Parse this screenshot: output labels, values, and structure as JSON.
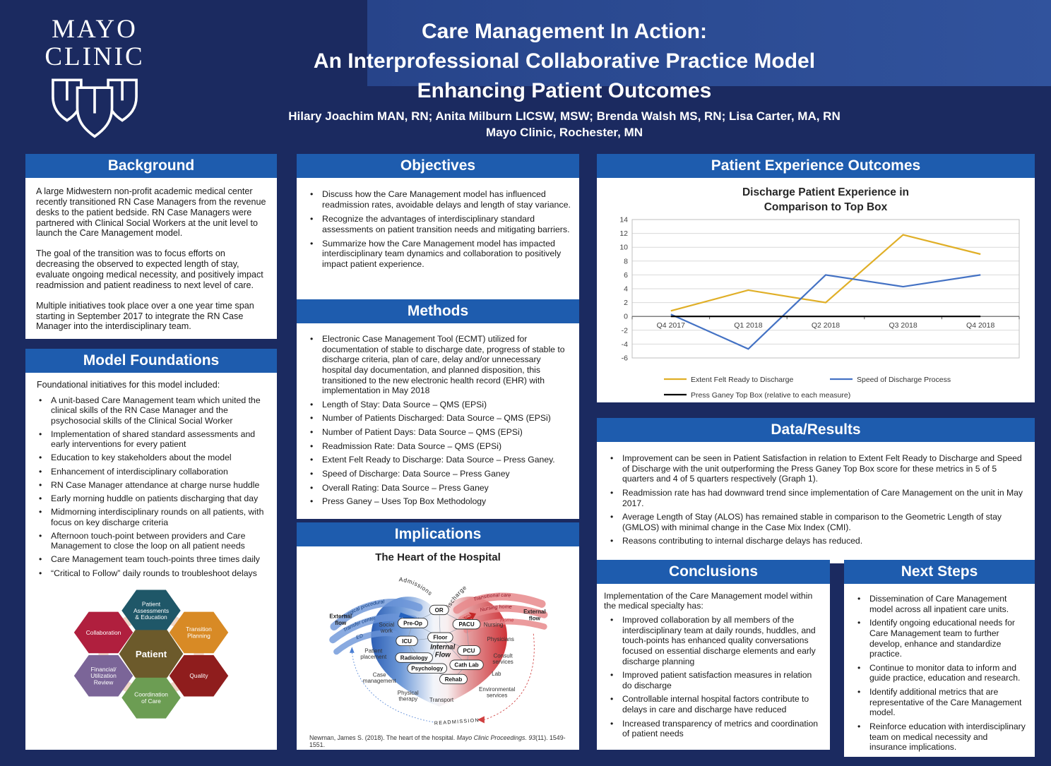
{
  "poster": {
    "logo_line1": "MAYO",
    "logo_line2": "CLINIC",
    "title_line1": "Care Management In Action:",
    "title_line2": "An Interprofessional Collaborative Practice Model",
    "title_line3": "Enhancing Patient Outcomes",
    "authors": "Hilary Joachim MAN, RN; Anita Milburn LICSW, MSW; Brenda Walsh MS, RN; Lisa Carter, MA, RN",
    "affiliation": "Mayo Clinic, Rochester, MN"
  },
  "colors": {
    "poster_navy": "#1b2a60",
    "header_accent_blue": "#2c4d94",
    "section_header_blue": "#1e5cae",
    "body_text": "#1a1a1a"
  },
  "background": {
    "title": "Background",
    "paragraphs": [
      "A large Midwestern non-profit academic medical center recently transitioned RN Case Managers from the revenue desks to the patient bedside. RN Case Managers were partnered with Clinical Social Workers at the unit level to launch the Care Management model.",
      "The goal of the transition was to focus efforts on decreasing the observed to expected length of stay, evaluate ongoing medical necessity, and positively impact readmission and patient readiness to next level of care.",
      "Multiple initiatives took place over a one year time span starting in September 2017 to integrate the RN Case Manager into the interdisciplinary team."
    ]
  },
  "model_foundations": {
    "title": "Model Foundations",
    "intro": "Foundational initiatives for this model included:",
    "bullets": [
      "A unit-based Care Management team which united the clinical skills of the RN Case Manager and the psychosocial skills of the Clinical Social Worker",
      "Implementation of shared standard assessments and early interventions for every patient",
      "Education to key stakeholders about the model",
      "Enhancement of interdisciplinary collaboration",
      "RN Case Manager attendance at charge nurse huddle",
      "Early morning huddle on patients discharging that day",
      "Midmorning interdisciplinary rounds on all patients, with focus on key discharge criteria",
      "Afternoon touch-point between providers and Care Management to close the loop on all patient needs",
      "Care Management team touch-points three  times daily",
      "“Critical to Follow” daily rounds  to troubleshoot delays"
    ],
    "hex_model": {
      "center": {
        "label": "Patient",
        "lines": [
          "Patient"
        ],
        "color": "#6c5a2b"
      },
      "ring": [
        {
          "label": "Patient Assessments & Education",
          "lines": [
            "Patient",
            "Assessments",
            "& Education"
          ],
          "color": "#1f5768"
        },
        {
          "label": "Transition Planning",
          "lines": [
            "Transition",
            "Planning"
          ],
          "color": "#d88a25"
        },
        {
          "label": "Quality",
          "lines": [
            "Quality"
          ],
          "color": "#8f1d1d"
        },
        {
          "label": "Coordination of Care",
          "lines": [
            "Coordination",
            "of Care"
          ],
          "color": "#6c9d53"
        },
        {
          "label": "Financial/ Utilization Review",
          "lines": [
            "Financial/",
            "Utilization",
            "Review"
          ],
          "color": "#7b6598"
        },
        {
          "label": "Collaboration",
          "lines": [
            "Collaboration"
          ],
          "color": "#b01f3e"
        }
      ]
    }
  },
  "objectives": {
    "title": "Objectives",
    "bullets": [
      "Discuss how the Care Management model has influenced readmission rates, avoidable delays and length of stay variance.",
      "Recognize the advantages of interdisciplinary standard assessments on patient transition needs and mitigating barriers.",
      "Summarize how the Care Management model has impacted interdisciplinary team dynamics and collaboration to positively impact patient experience."
    ]
  },
  "methods": {
    "title": "Methods",
    "bullets": [
      "Electronic Case Management Tool (ECMT) utilized for documentation of stable to discharge date, progress of stable to discharge criteria, plan of care, delay and/or unnecessary hospital day documentation, and planned disposition, this transitioned to the new electronic health record (EHR) with implementation in May 2018",
      "Length of Stay: Data Source – QMS (EPSi)",
      "Number of Patients Discharged: Data Source – QMS (EPSi)",
      "Number of Patient Days: Data Source – QMS (EPSi)",
      "Readmission Rate: Data Source – QMS (EPSi)",
      "Extent Felt Ready to Discharge: Data Source – Press Ganey.",
      "Speed of Discharge: Data Source – Press Ganey",
      "Overall Rating: Data Source – Press Ganey",
      "Press Ganey – Uses Top Box Methodology"
    ]
  },
  "implications": {
    "title": "Implications",
    "diagram_title": "The Heart of the Hospital",
    "inflow_bands": [
      "Surgical procedural",
      "Transfer center",
      "ED"
    ],
    "inflow_arc_label": "Admissions",
    "inflow_arrow_label": "PRELOAD",
    "outflow_bands": [
      "Transitional care",
      "Nursing home",
      "Home"
    ],
    "outflow_arc_label": "Discharge",
    "outflow_arrow_label": "AFTERLOAD",
    "external_flow_left": [
      "External",
      "flow"
    ],
    "external_flow_right": [
      "External",
      "flow"
    ],
    "nodes": [
      "OR",
      "Pre-Op",
      "PACU",
      "Floor",
      "ICU",
      "PCU",
      "Radiology",
      "Cath Lab",
      "Psychology",
      "Rehab"
    ],
    "center_label_lines": [
      "Internal",
      "Flow"
    ],
    "left_labels": [
      [
        "Social",
        "work"
      ],
      [
        "Patient",
        "placement"
      ],
      [
        "Case",
        "management"
      ],
      [
        "Physical",
        "therapy"
      ],
      [
        "Transport"
      ]
    ],
    "right_labels": [
      [
        "Nursing"
      ],
      [
        "Physicians"
      ],
      [
        "Consult",
        "services"
      ],
      [
        "Lab"
      ],
      [
        "Environmental",
        "services"
      ]
    ],
    "readmission_label": "READMISSION",
    "citation": {
      "prefix": "Newman, James S. (2018). The heart of the hospital. ",
      "italic": "Mayo Clinic Proceedings.",
      "italic2": "  93",
      "suffix": "(11). 1549-1551."
    }
  },
  "patient_experience": {
    "title": "Patient Experience Outcomes"
  },
  "chart_data": {
    "type": "line",
    "title": "Discharge Patient Experience in Comparison to Top Box",
    "title_lines": [
      "Discharge Patient Experience in",
      "Comparison to Top Box"
    ],
    "categories": [
      "Q4 2017",
      "Q1 2018",
      "Q2 2018",
      "Q3 2018",
      "Q4 2018"
    ],
    "series": [
      {
        "name": "Extent Felt Ready to Discharge",
        "color": "#e0af27",
        "values": [
          0.8,
          3.8,
          2,
          11.8,
          9
        ]
      },
      {
        "name": "Speed of Discharge Process",
        "color": "#4472c4",
        "values": [
          0.3,
          -4.7,
          6,
          4.3,
          6
        ]
      },
      {
        "name": "Press Ganey Top Box (relative to each measure)",
        "color": "#000000",
        "values": [
          0,
          0,
          0,
          0,
          0
        ]
      }
    ],
    "ylim": [
      -6,
      14
    ],
    "ytick_step": 2,
    "grid": true,
    "legend_position": "bottom"
  },
  "data_results": {
    "title": "Data/Results",
    "bullets": [
      "Improvement can be seen in Patient Satisfaction in relation to Extent Felt Ready to Discharge and Speed of Discharge with the unit outperforming the Press Ganey Top Box score for these metrics in 5 of 5 quarters and 4 of 5 quarters respectively (Graph 1).",
      "Readmission rate has had downward trend since implementation of Care Management on the unit in May 2017.",
      "Average Length of Stay (ALOS) has remained stable in comparison to the Geometric Length of stay (GMLOS) with minimal change in the Case Mix Index (CMI).",
      "Reasons contributing to internal discharge delays has reduced."
    ]
  },
  "conclusions": {
    "title": "Conclusions",
    "intro": "Implementation of the Care Management model within the medical specialty has:",
    "bullets": [
      "Improved collaboration by all members of the interdisciplinary team at daily rounds, huddles, and touch-points has enhanced quality conversations focused on essential discharge elements and early discharge planning",
      "Improved patient satisfaction measures in relation do discharge",
      "Controllable internal hospital factors contribute to delays in care and discharge have reduced",
      "Increased transparency of metrics and coordination of patient needs"
    ]
  },
  "next_steps": {
    "title": "Next Steps",
    "bullets": [
      "Dissemination of Care Management model across all inpatient care units.",
      "Identify ongoing educational needs for Care Management team to further develop, enhance and standardize practice.",
      "Continue to monitor data to inform and guide practice, education and research.",
      "Identify additional metrics that are representative of the Care Management model.",
      "Reinforce education with interdisciplinary team on medical necessity and insurance implications."
    ]
  }
}
